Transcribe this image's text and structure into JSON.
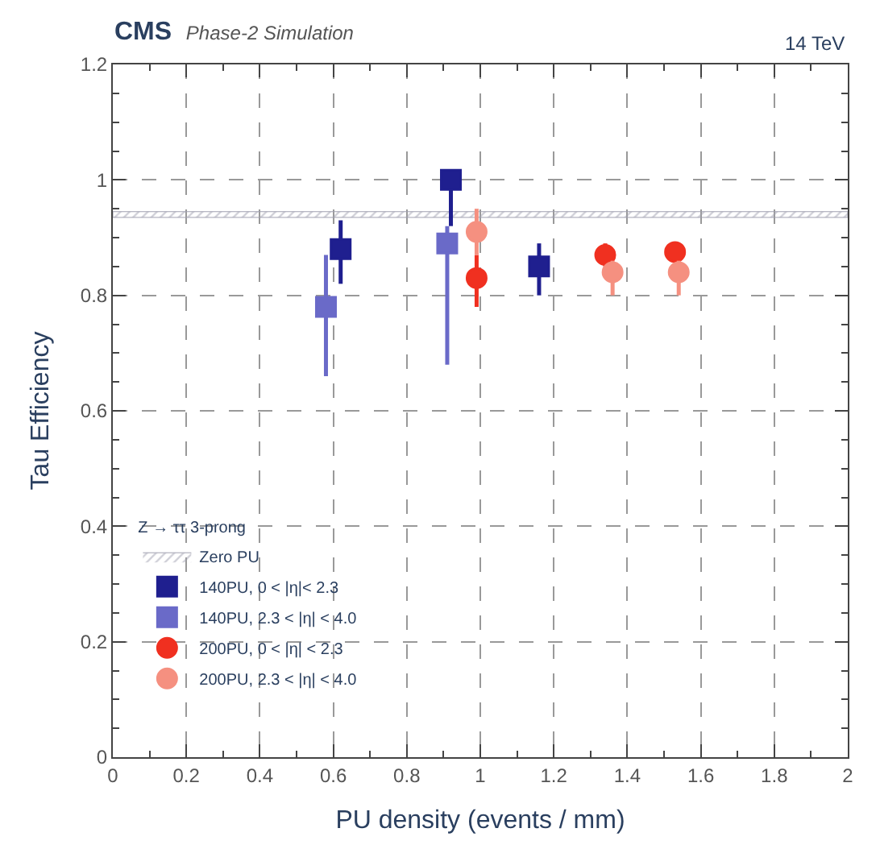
{
  "chart_data": {
    "type": "scatter",
    "title": "CMS",
    "subtitle": "Phase-2 Simulation",
    "annotations": [
      "14 TeV"
    ],
    "xlabel": "PU density (events / mm)",
    "ylabel": "Tau Efficiency",
    "legend_title": "Z → ττ 3-prong",
    "xlim": [
      0,
      2
    ],
    "xticks": [
      0,
      0.2,
      0.4,
      0.6,
      0.8,
      1,
      1.2,
      1.4,
      1.6,
      1.8,
      2
    ],
    "ylim": [
      0,
      1.2
    ],
    "yticks": [
      0,
      0.2,
      0.4,
      0.6,
      0.8,
      1,
      1.2
    ],
    "grid": true,
    "legend": "bottom left",
    "bands": [
      {
        "axis": "y",
        "from": 0.935,
        "to": 0.945,
        "label": "Zero PU",
        "color": "#a0a0b0"
      }
    ],
    "series": [
      {
        "name": "140PU, 0 < |η|< 2.3",
        "color": "#1f1f8f",
        "marker": "square",
        "x": [
          0.62,
          0.92,
          1.16
        ],
        "values": [
          0.88,
          1.0,
          0.85
        ],
        "errors": [
          [
            0.82,
            0.93
          ],
          [
            0.92,
            1.0
          ],
          [
            0.8,
            0.89
          ]
        ]
      },
      {
        "name": "140PU, 2.3 < |η| < 4.0",
        "color": "#6a6ac8",
        "marker": "square",
        "x": [
          0.58,
          0.91
        ],
        "values": [
          0.78,
          0.89
        ],
        "errors": [
          [
            0.66,
            0.87
          ],
          [
            0.68,
            0.92
          ]
        ]
      },
      {
        "name": "200PU, 0 < |η| < 2.3",
        "color": "#f03020",
        "marker": "circle",
        "x": [
          0.99,
          1.34,
          1.53
        ],
        "values": [
          0.83,
          0.87,
          0.875
        ],
        "errors": [
          [
            0.78,
            0.87
          ],
          [
            0.85,
            0.89
          ],
          [
            0.86,
            0.89
          ]
        ]
      },
      {
        "name": "200PU, 2.3 < |η| < 4.0",
        "color": "#f59080",
        "marker": "circle",
        "x": [
          0.99,
          1.36,
          1.54
        ],
        "values": [
          0.91,
          0.84,
          0.84
        ],
        "errors": [
          [
            0.87,
            0.95
          ],
          [
            0.8,
            0.86
          ],
          [
            0.8,
            0.86
          ]
        ]
      }
    ]
  }
}
